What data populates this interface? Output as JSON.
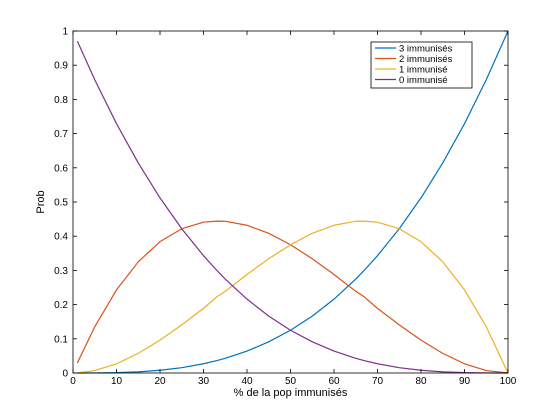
{
  "chart_data": {
    "type": "line",
    "title": "",
    "xlabel": "% de la pop immunisés",
    "ylabel": "Prob",
    "xlim": [
      0,
      100
    ],
    "ylim": [
      0,
      1
    ],
    "xticks": [
      0,
      10,
      20,
      30,
      40,
      50,
      60,
      70,
      80,
      90,
      100
    ],
    "yticks": [
      0,
      0.1,
      0.2,
      0.3,
      0.4,
      0.5,
      0.6,
      0.7,
      0.8,
      0.9,
      1
    ],
    "ytick_labels": [
      "0",
      "0.1",
      "0.2",
      "0.3",
      "0.4",
      "0.5",
      "0.6",
      "0.7",
      "0.8",
      "0.9",
      "1"
    ],
    "grid": false,
    "legend_position": "top-right",
    "x": [
      1,
      5,
      10,
      15,
      20,
      25,
      30,
      33,
      35,
      40,
      45,
      50,
      55,
      60,
      65,
      67,
      70,
      75,
      80,
      85,
      90,
      95,
      100
    ],
    "series": [
      {
        "name": "3 immunisés",
        "color": "#0072bd",
        "values": [
          1e-06,
          0.000125,
          0.001,
          0.003375,
          0.008,
          0.015625,
          0.027,
          0.035937,
          0.042875,
          0.064,
          0.091125,
          0.125,
          0.166375,
          0.216,
          0.274625,
          0.300763,
          0.343,
          0.421875,
          0.512,
          0.614125,
          0.729,
          0.857375,
          1.0
        ]
      },
      {
        "name": "2 immunisés",
        "color": "#d95319",
        "values": [
          0.029403,
          0.135375,
          0.243,
          0.325125,
          0.384,
          0.421875,
          0.441,
          0.444033,
          0.443625,
          0.432,
          0.408375,
          0.375,
          0.334125,
          0.288,
          0.238875,
          0.222111,
          0.189,
          0.140625,
          0.096,
          0.057375,
          0.027,
          0.007125,
          0.0
        ]
      },
      {
        "name": "1 immunisé",
        "color": "#edb120",
        "values": [
          0.000297,
          0.007125,
          0.027,
          0.057375,
          0.096,
          0.140625,
          0.189,
          0.222111,
          0.238875,
          0.288,
          0.334125,
          0.375,
          0.408375,
          0.432,
          0.443625,
          0.444033,
          0.441,
          0.421875,
          0.384,
          0.325125,
          0.243,
          0.135375,
          0.0
        ]
      },
      {
        "name": "0 immunisé",
        "color": "#7e2f8e",
        "values": [
          0.970299,
          0.857375,
          0.729,
          0.614125,
          0.512,
          0.421875,
          0.343,
          0.300763,
          0.274625,
          0.216,
          0.166375,
          0.125,
          0.091125,
          0.064,
          0.042875,
          0.035937,
          0.027,
          0.015625,
          0.008,
          0.003375,
          0.001,
          0.000125,
          0.0
        ]
      }
    ]
  }
}
